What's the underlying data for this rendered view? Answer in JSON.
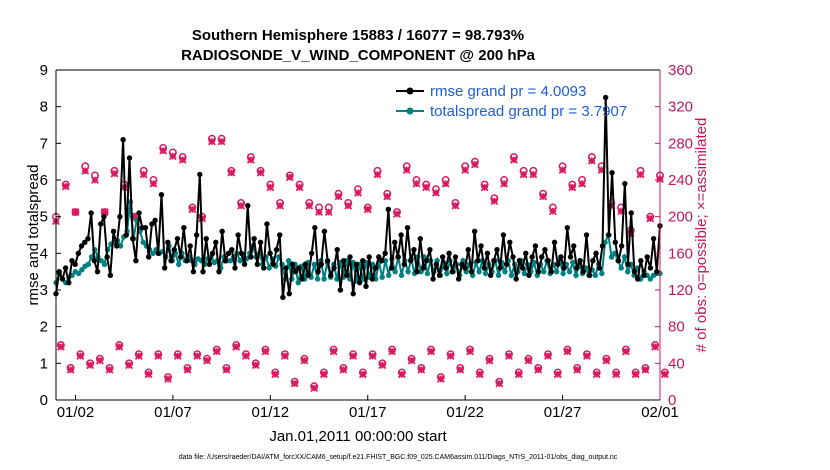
{
  "chart_data": {
    "type": "line",
    "title": "Southern Hemisphere 15883 / 16077 = 98.793%",
    "subtitle": "RADIOSONDE_V_WIND_COMPONENT @ 200 hPa",
    "xlabel": "Jan.01,2011 00:00:00 start",
    "ylabel_left": "rmse and totalspread",
    "ylabel_right": "# of obs: o=possible; ×=assimilated",
    "xlim": [
      0,
      31
    ],
    "ylim_left": [
      0,
      9
    ],
    "ylim_right": [
      0,
      360
    ],
    "xticks": [
      1,
      6,
      11,
      16,
      21,
      26,
      31
    ],
    "xtick_labels": [
      "01/02",
      "01/07",
      "01/12",
      "01/17",
      "01/22",
      "01/27",
      "02/01"
    ],
    "yticks_left": [
      "0",
      "1",
      "2",
      "3",
      "4",
      "5",
      "6",
      "7",
      "8",
      "9"
    ],
    "yticks_right": [
      "0",
      "40",
      "80",
      "120",
      "160",
      "200",
      "240",
      "280",
      "320",
      "360"
    ],
    "legend": [
      "rmse grand pr = 4.0093",
      "totalspread grand pr = 3.7907"
    ],
    "footnote": "data file: /Users/raeder/DAI/ATM_forcXX/CAM6_setup/f.e21.FHIST_BGC.f09_025.CAM6assim.011/Diags_NTrS_2011-01/obs_diag_output.nc",
    "colors": {
      "rmse": "#000000",
      "totalspread": "#008080",
      "obs": "#d81b60",
      "axis_right": "#c2185b"
    },
    "series": [
      {
        "name": "rmse",
        "values": [
          2.9,
          3.5,
          3.3,
          3.6,
          3.2,
          3.8,
          3.7,
          4.0,
          4.2,
          4.3,
          4.4,
          5.1,
          3.8,
          3.5,
          4.8,
          5.0,
          3.9,
          3.4,
          4.6,
          4.2,
          5.0,
          7.1,
          4.5,
          6.6,
          4.4,
          3.8,
          5.1,
          4.7,
          4.7,
          3.9,
          4.8,
          4.9,
          4.0,
          5.6,
          3.6,
          4.3,
          3.8,
          4.1,
          4.4,
          3.9,
          4.7,
          3.8,
          4.2,
          3.5,
          4.5,
          6.15,
          3.5,
          4.4,
          3.7,
          4.0,
          4.3,
          3.5,
          4.6,
          3.8,
          4.0,
          4.1,
          3.6,
          4.5,
          4.0,
          3.7,
          5.3,
          3.9,
          4.4,
          3.7,
          4.3,
          3.6,
          4.8,
          4.0,
          3.7,
          4.1,
          4.5,
          2.8,
          3.6,
          2.9,
          3.7,
          3.5,
          3.6,
          3.3,
          3.7,
          3.4,
          4.0,
          4.7,
          3.5,
          3.7,
          4.6,
          3.8,
          3.4,
          3.6,
          4.1,
          3.0,
          3.8,
          3.4,
          3.9,
          2.9,
          3.7,
          3.2,
          3.8,
          3.1,
          3.9,
          3.3,
          3.6,
          3.9,
          3.8,
          4.0,
          5.2,
          3.6,
          4.3,
          3.9,
          4.5,
          3.7,
          4.7,
          3.8,
          4.1,
          3.5,
          4.4,
          3.6,
          3.8,
          4.1,
          3.3,
          3.7,
          3.4,
          3.9,
          3.6,
          4.0,
          3.5,
          3.9,
          3.3,
          3.7,
          3.6,
          4.1,
          3.5,
          4.6,
          3.8,
          4.2,
          3.6,
          4.0,
          3.4,
          3.8,
          4.1,
          3.6,
          4.5,
          3.7,
          4.3,
          3.9,
          3.3,
          3.8,
          3.6,
          4.0,
          3.4,
          3.9,
          4.2,
          3.5,
          3.9,
          4.1,
          3.8,
          3.5,
          4.3,
          3.7,
          3.9,
          3.6,
          4.7,
          3.9,
          4.2,
          3.6,
          3.8,
          3.5,
          4.5,
          3.4,
          3.8,
          4.0,
          3.6,
          4.2,
          8.25,
          4.5,
          6.2,
          4.3,
          3.8,
          4.2,
          5.9,
          3.7,
          5.1,
          3.5,
          3.3,
          3.8,
          3.4,
          3.9,
          3.6,
          4.4,
          3.5,
          4.75
        ]
      },
      {
        "name": "totalspread",
        "values": [
          3.2,
          3.45,
          3.3,
          3.2,
          3.35,
          3.4,
          3.5,
          3.45,
          3.55,
          3.65,
          3.7,
          3.9,
          4.1,
          3.9,
          3.8,
          3.7,
          4.1,
          4.25,
          4.3,
          4.35,
          4.2,
          4.45,
          4.6,
          5.4,
          4.4,
          4.9,
          4.6,
          4.3,
          4.2,
          4.1,
          4.0,
          4.1,
          4.0,
          4.05,
          3.9,
          4.2,
          3.8,
          4.0,
          3.7,
          4.0,
          3.8,
          3.9,
          3.8,
          3.7,
          3.85,
          3.8,
          3.7,
          3.85,
          3.9,
          3.75,
          3.8,
          3.6,
          3.9,
          3.8,
          3.8,
          3.9,
          4.0,
          3.8,
          3.95,
          3.85,
          4.0,
          4.2,
          3.9,
          4.0,
          3.7,
          3.9,
          3.6,
          3.85,
          3.65,
          3.9,
          3.7,
          3.3,
          3.8,
          3.3,
          3.7,
          3.2,
          3.65,
          3.3,
          3.75,
          3.35,
          3.7,
          3.3,
          3.8,
          3.3,
          3.75,
          3.35,
          3.7,
          3.3,
          3.75,
          3.35,
          3.8,
          3.3,
          3.75,
          3.25,
          3.7,
          3.3,
          3.75,
          3.35,
          3.7,
          3.3,
          3.75,
          3.35,
          3.8,
          3.4,
          3.85,
          3.5,
          3.9,
          3.4,
          3.8,
          3.5,
          3.85,
          3.45,
          3.9,
          3.5,
          3.9,
          3.45,
          3.8,
          3.5,
          3.8,
          3.4,
          3.75,
          3.45,
          3.8,
          3.5,
          3.7,
          3.4,
          3.8,
          3.5,
          3.7,
          3.4,
          3.75,
          3.5,
          3.8,
          3.45,
          3.7,
          3.5,
          3.8,
          3.4,
          3.75,
          3.5,
          3.8,
          3.4,
          3.7,
          3.5,
          3.8,
          3.45,
          3.7,
          3.5,
          3.75,
          3.4,
          3.7,
          3.5,
          3.8,
          3.45,
          3.7,
          3.5,
          3.8,
          3.45,
          3.7,
          3.5,
          3.75,
          3.4,
          3.7,
          3.45,
          3.6,
          3.4,
          3.55,
          3.4,
          3.7,
          3.45,
          4.3,
          4.5,
          3.9,
          4.0,
          3.8,
          3.6,
          3.9,
          3.5,
          3.7,
          3.4,
          3.6,
          3.3,
          3.5,
          3.4,
          3.3,
          3.4,
          3.45,
          3.45
        ]
      },
      {
        "name": "obs_possible_00Z",
        "values": [
          200,
          235,
          205,
          255,
          245,
          205,
          250,
          235,
          200,
          250,
          240,
          275,
          270,
          265,
          210,
          200,
          285,
          285,
          250,
          215,
          265,
          250,
          235,
          215,
          245,
          235,
          215,
          210,
          210,
          225,
          215,
          230,
          210,
          250,
          225,
          205,
          255,
          240,
          235,
          230,
          240,
          215,
          255,
          260,
          235,
          220,
          240,
          265,
          250,
          250,
          225,
          210,
          255,
          235,
          240,
          265,
          255,
          215,
          210,
          185,
          250,
          200,
          245
        ]
      },
      {
        "name": "obs_assimilated_00Z",
        "values": [
          195,
          233,
          205,
          250,
          240,
          205,
          247,
          232,
          200,
          246,
          236,
          272,
          266,
          262,
          208,
          198,
          282,
          282,
          248,
          212,
          262,
          248,
          232,
          212,
          243,
          232,
          212,
          205,
          205,
          222,
          212,
          226,
          208,
          246,
          222,
          203,
          251,
          236,
          232,
          226,
          236,
          212,
          251,
          257,
          232,
          217,
          236,
          262,
          246,
          246,
          222,
          206,
          251,
          232,
          236,
          261,
          251,
          212,
          206,
          182,
          246,
          198,
          241
        ]
      },
      {
        "name": "obs_possible_12Z",
        "values": [
          60,
          35,
          50,
          40,
          45,
          35,
          60,
          40,
          50,
          30,
          50,
          25,
          50,
          35,
          50,
          45,
          55,
          35,
          60,
          50,
          40,
          55,
          30,
          50,
          20,
          45,
          15,
          30,
          55,
          35,
          50,
          30,
          50,
          40,
          55,
          30,
          45,
          35,
          55,
          25,
          50,
          35,
          55,
          30,
          45,
          20,
          50,
          30,
          45,
          35,
          50,
          30,
          55,
          35,
          50,
          30,
          45,
          30,
          55,
          30,
          35,
          60,
          30
        ]
      },
      {
        "name": "obs_assimilated_12Z",
        "values": [
          58,
          33,
          48,
          38,
          43,
          33,
          58,
          38,
          48,
          28,
          48,
          23,
          48,
          33,
          48,
          43,
          53,
          33,
          58,
          48,
          38,
          53,
          28,
          48,
          18,
          43,
          13,
          28,
          53,
          33,
          48,
          28,
          48,
          38,
          53,
          28,
          43,
          33,
          53,
          23,
          48,
          33,
          53,
          28,
          43,
          18,
          48,
          28,
          43,
          33,
          48,
          28,
          53,
          33,
          48,
          28,
          43,
          28,
          53,
          28,
          33,
          58,
          28
        ]
      }
    ]
  }
}
